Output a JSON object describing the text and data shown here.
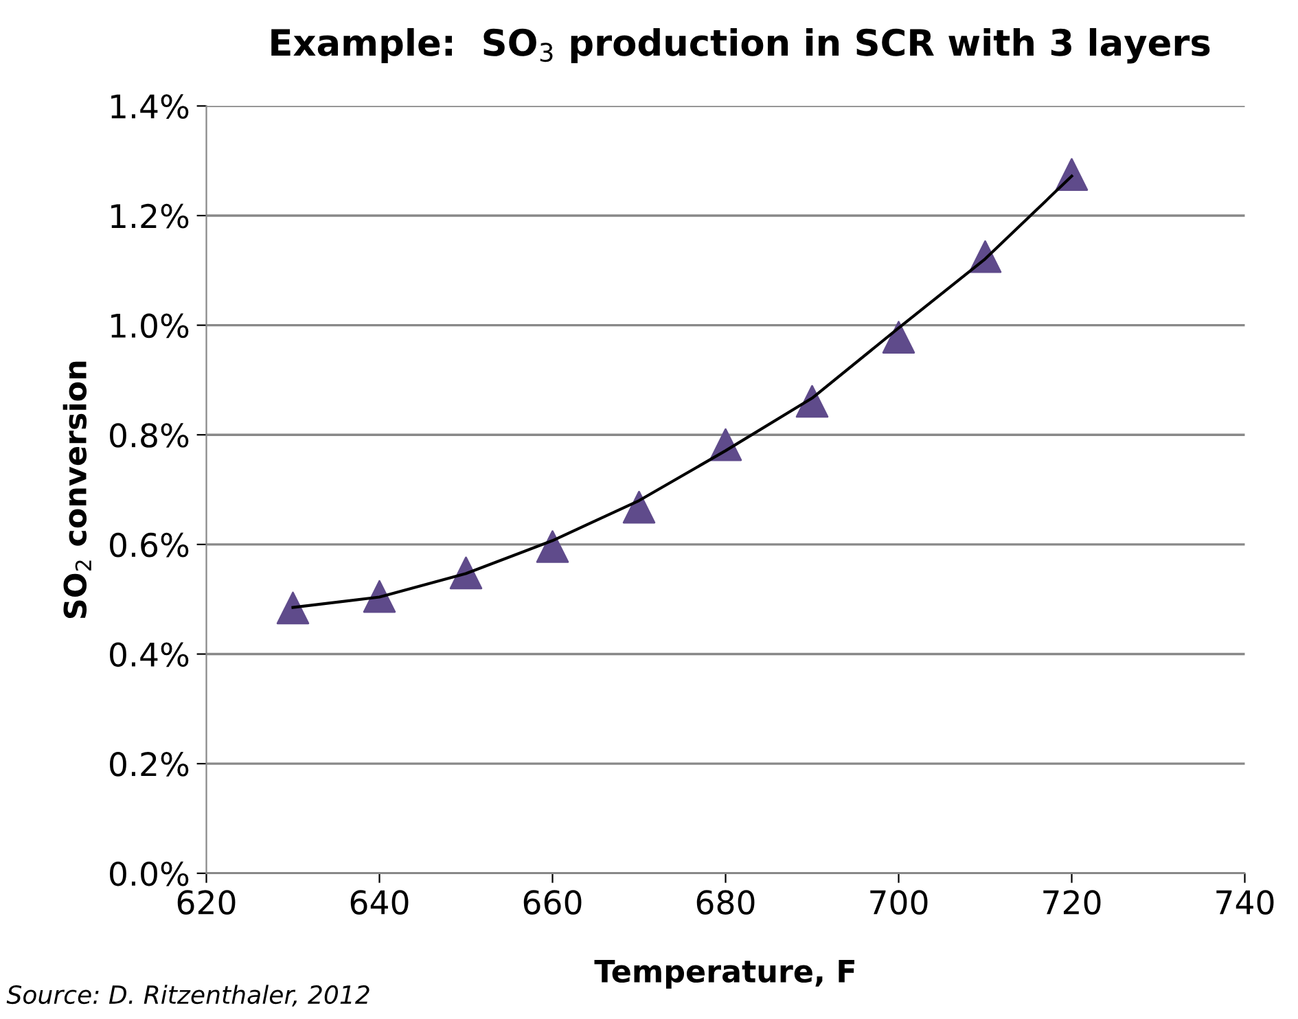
{
  "chart_data": {
    "type": "scatter",
    "title": "Example:  SO$_{3}$ production in SCR with 3 layers",
    "xlabel": "Temperature, F",
    "ylabel": "SO$_{2}$ conversion",
    "series": [
      {
        "color": "#5f4b8b",
        "marker": "triangle",
        "x": [
          630,
          640,
          650,
          660,
          670,
          680,
          690,
          700,
          710,
          720
        ],
        "values": [
          0.484,
          0.505,
          0.548,
          0.596,
          0.668,
          0.782,
          0.861,
          0.978,
          1.125,
          1.275
        ]
      },
      {
        "type": "line",
        "color": "#000000",
        "marker": "none",
        "line_style": "solid",
        "x": [
          630,
          640,
          650,
          660,
          670,
          680,
          690,
          700,
          710,
          720
        ],
        "values": [
          0.485,
          0.504,
          0.547,
          0.607,
          0.68,
          0.771,
          0.867,
          0.995,
          1.121,
          1.272
        ]
      }
    ],
    "xlim": [
      620,
      740
    ],
    "xticks": [
      620,
      640,
      660,
      680,
      700,
      720,
      740
    ],
    "ylim": [
      0,
      1.4
    ],
    "yticks": [
      {
        "value": 0,
        "label": "0.0%"
      },
      {
        "value": 0.2,
        "label": "0.2%"
      },
      {
        "value": 0.4,
        "label": "0.4%"
      },
      {
        "value": 0.6,
        "label": "0.6%"
      },
      {
        "value": 0.8,
        "label": "0.8%"
      },
      {
        "value": 1.0,
        "label": "1.0%"
      },
      {
        "value": 1.2,
        "label": "1.2%"
      },
      {
        "value": 1.4,
        "label": "1.4%"
      }
    ],
    "grid": "y",
    "annotations": [
      "Source: D. Ritzenthaler, 2012"
    ]
  }
}
